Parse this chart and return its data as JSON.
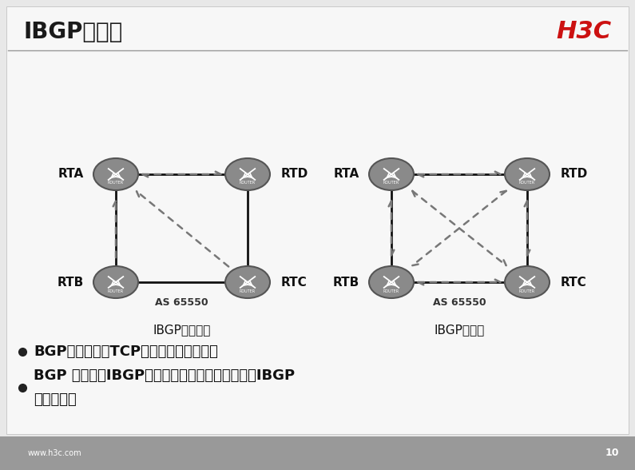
{
  "title": "IBGP全连接",
  "h3c_logo": "H3C",
  "bg_color": "#e8e8e8",
  "slide_bg": "#f5f5f5",
  "router_color": "#909090",
  "router_edge_color": "#606060",
  "solid_line_color": "#111111",
  "dashed_arrow_color": "#777777",
  "diagram1_label": "IBGP部分连接",
  "diagram2_label": "IBGP全连接",
  "as_label": "AS 65550",
  "bullet1": "BGP会话是基于TCP的点到点的单播连接",
  "bullet2": "BGP 发言者从IBGP对等体获得的路由不向其他的IBGP\n对等体发布",
  "footer_text": "www.h3c.com",
  "page_num": "10",
  "bottom_bar_color": "#999999"
}
